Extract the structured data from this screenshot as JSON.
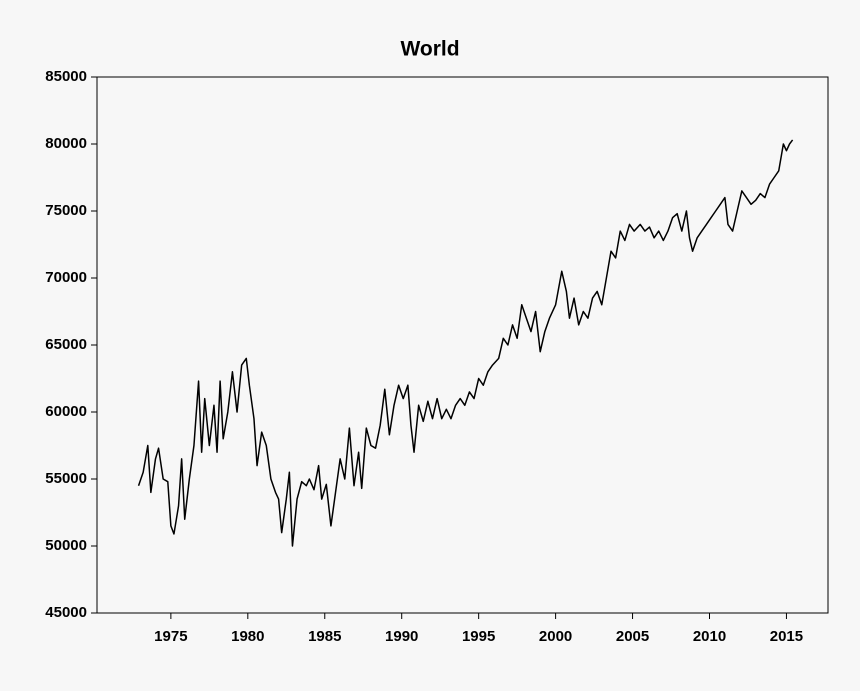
{
  "chart_data": {
    "type": "line",
    "title": "World",
    "x": [
      1972.9,
      1973.2,
      1973.5,
      1973.7,
      1974.0,
      1974.2,
      1974.5,
      1974.8,
      1975.0,
      1975.2,
      1975.5,
      1975.7,
      1975.9,
      1976.2,
      1976.5,
      1976.8,
      1977.0,
      1977.2,
      1977.5,
      1977.8,
      1978.0,
      1978.2,
      1978.4,
      1978.7,
      1979.0,
      1979.3,
      1979.6,
      1979.9,
      1980.1,
      1980.4,
      1980.6,
      1980.9,
      1981.2,
      1981.5,
      1981.8,
      1982.0,
      1982.2,
      1982.5,
      1982.7,
      1982.9,
      1983.2,
      1983.5,
      1983.8,
      1984.0,
      1984.3,
      1984.6,
      1984.8,
      1985.1,
      1985.4,
      1985.7,
      1986.0,
      1986.3,
      1986.6,
      1986.9,
      1987.2,
      1987.4,
      1987.7,
      1988.0,
      1988.3,
      1988.6,
      1988.9,
      1989.2,
      1989.5,
      1989.8,
      1990.1,
      1990.4,
      1990.6,
      1990.8,
      1991.1,
      1991.4,
      1991.7,
      1992.0,
      1992.3,
      1992.6,
      1992.9,
      1993.2,
      1993.5,
      1993.8,
      1994.1,
      1994.4,
      1994.7,
      1995.0,
      1995.3,
      1995.6,
      1995.9,
      1996.3,
      1996.6,
      1996.9,
      1997.2,
      1997.5,
      1997.8,
      1998.1,
      1998.4,
      1998.7,
      1999.0,
      1999.3,
      1999.6,
      2000.0,
      2000.4,
      2000.7,
      2000.9,
      2001.2,
      2001.5,
      2001.8,
      2002.1,
      2002.4,
      2002.7,
      2003.0,
      2003.3,
      2003.6,
      2003.9,
      2004.2,
      2004.5,
      2004.8,
      2005.1,
      2005.5,
      2005.8,
      2006.1,
      2006.4,
      2006.7,
      2007.0,
      2007.3,
      2007.6,
      2007.9,
      2008.2,
      2008.5,
      2008.7,
      2008.9,
      2009.2,
      2009.5,
      2009.8,
      2010.1,
      2010.4,
      2010.7,
      2011.0,
      2011.2,
      2011.5,
      2011.8,
      2012.1,
      2012.4,
      2012.7,
      2013.0,
      2013.3,
      2013.6,
      2013.9,
      2014.2,
      2014.5,
      2014.8,
      2015.0,
      2015.2,
      2015.4
    ],
    "values": [
      54500,
      55500,
      57500,
      54000,
      56500,
      57300,
      55000,
      54800,
      51500,
      50900,
      53000,
      56500,
      52000,
      55000,
      57500,
      62300,
      57000,
      61000,
      57500,
      60500,
      57000,
      62300,
      58000,
      60000,
      63000,
      60000,
      63500,
      64000,
      62000,
      59500,
      56000,
      58500,
      57500,
      55000,
      54000,
      53500,
      51000,
      53500,
      55500,
      50000,
      53500,
      54800,
      54500,
      55000,
      54200,
      56000,
      53500,
      54600,
      51500,
      54000,
      56500,
      55000,
      58800,
      54500,
      57000,
      54300,
      58800,
      57500,
      57300,
      59000,
      61700,
      58300,
      60500,
      62000,
      61000,
      62000,
      59000,
      57000,
      60500,
      59300,
      60800,
      59500,
      61000,
      59500,
      60200,
      59500,
      60500,
      61000,
      60500,
      61500,
      61000,
      62500,
      62000,
      63000,
      63500,
      64000,
      65500,
      65000,
      66500,
      65500,
      68000,
      67000,
      66000,
      67500,
      64500,
      66000,
      67000,
      68000,
      70500,
      69000,
      67000,
      68500,
      66500,
      67500,
      67000,
      68500,
      69000,
      68000,
      70000,
      72000,
      71500,
      73500,
      72800,
      74000,
      73500,
      74000,
      73500,
      73800,
      73000,
      73500,
      72800,
      73500,
      74500,
      74800,
      73500,
      75000,
      73000,
      72000,
      73000,
      73500,
      74000,
      74500,
      75000,
      75500,
      76000,
      74000,
      73500,
      75000,
      76500,
      76000,
      75500,
      75800,
      76300,
      76000,
      77000,
      77500,
      78000,
      80000,
      79500,
      80000,
      80300
    ],
    "color": "#000000",
    "xlim": [
      1970.2,
      2017.7
    ],
    "xticks": [
      1975,
      1980,
      1985,
      1990,
      1995,
      2000,
      2005,
      2010,
      2015
    ],
    "ylim": [
      45000,
      85000
    ],
    "yticks": [
      45000,
      50000,
      55000,
      60000,
      65000,
      70000,
      75000,
      80000,
      85000
    ]
  }
}
